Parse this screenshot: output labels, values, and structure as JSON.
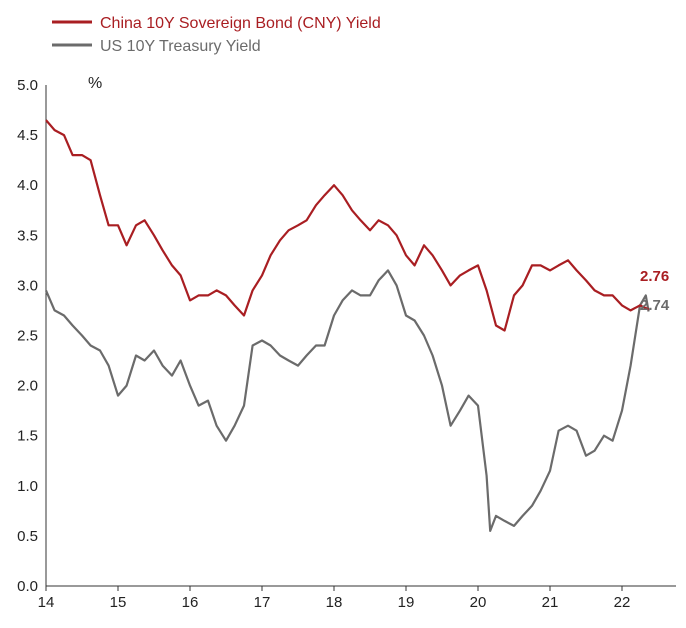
{
  "chart_data": {
    "type": "line",
    "ylabel": "%",
    "ylim": [
      0,
      5
    ],
    "xlim": [
      2014,
      2022.75
    ],
    "x_ticks": [
      "14",
      "15",
      "16",
      "17",
      "18",
      "19",
      "20",
      "21",
      "22"
    ],
    "y_ticks": [
      "0.0",
      "0.5",
      "1.0",
      "1.5",
      "2.0",
      "2.5",
      "3.0",
      "3.5",
      "4.0",
      "4.5",
      "5.0"
    ],
    "grid": false,
    "legend": "top-left",
    "series": [
      {
        "name": "China 10Y Sovereign Bond (CNY) Yield",
        "color": "#a91e22",
        "end_label": "2.76",
        "x": [
          2014.0,
          2014.12,
          2014.25,
          2014.37,
          2014.5,
          2014.62,
          2014.75,
          2014.87,
          2015.0,
          2015.12,
          2015.25,
          2015.37,
          2015.5,
          2015.62,
          2015.75,
          2015.87,
          2016.0,
          2016.12,
          2016.25,
          2016.37,
          2016.5,
          2016.62,
          2016.75,
          2016.87,
          2017.0,
          2017.12,
          2017.25,
          2017.37,
          2017.5,
          2017.62,
          2017.75,
          2017.87,
          2018.0,
          2018.12,
          2018.25,
          2018.37,
          2018.5,
          2018.62,
          2018.75,
          2018.87,
          2019.0,
          2019.12,
          2019.25,
          2019.37,
          2019.5,
          2019.62,
          2019.75,
          2019.87,
          2020.0,
          2020.12,
          2020.25,
          2020.37,
          2020.5,
          2020.62,
          2020.75,
          2020.87,
          2021.0,
          2021.12,
          2021.25,
          2021.37,
          2021.5,
          2021.62,
          2021.75,
          2021.87,
          2022.0,
          2022.12,
          2022.25,
          2022.37
        ],
        "values": [
          4.65,
          4.55,
          4.5,
          4.3,
          4.3,
          4.25,
          3.9,
          3.6,
          3.6,
          3.4,
          3.6,
          3.65,
          3.5,
          3.35,
          3.2,
          3.1,
          2.85,
          2.9,
          2.9,
          2.95,
          2.9,
          2.8,
          2.7,
          2.95,
          3.1,
          3.3,
          3.45,
          3.55,
          3.6,
          3.65,
          3.8,
          3.9,
          4.0,
          3.9,
          3.75,
          3.65,
          3.55,
          3.65,
          3.6,
          3.5,
          3.3,
          3.2,
          3.4,
          3.3,
          3.15,
          3.0,
          3.1,
          3.15,
          3.2,
          2.95,
          2.6,
          2.55,
          2.9,
          3.0,
          3.2,
          3.2,
          3.15,
          3.2,
          3.25,
          3.15,
          3.05,
          2.95,
          2.9,
          2.9,
          2.8,
          2.75,
          2.8,
          2.76
        ]
      },
      {
        "name": "US 10Y Treasury Yield",
        "color": "#6b6b6b",
        "end_label": "2.74",
        "x": [
          2014.0,
          2014.12,
          2014.25,
          2014.37,
          2014.5,
          2014.62,
          2014.75,
          2014.87,
          2015.0,
          2015.12,
          2015.25,
          2015.37,
          2015.5,
          2015.62,
          2015.75,
          2015.87,
          2016.0,
          2016.12,
          2016.25,
          2016.37,
          2016.5,
          2016.62,
          2016.75,
          2016.87,
          2017.0,
          2017.12,
          2017.25,
          2017.37,
          2017.5,
          2017.62,
          2017.75,
          2017.87,
          2018.0,
          2018.12,
          2018.25,
          2018.37,
          2018.5,
          2018.62,
          2018.75,
          2018.87,
          2019.0,
          2019.12,
          2019.25,
          2019.37,
          2019.5,
          2019.62,
          2019.75,
          2019.87,
          2020.0,
          2020.12,
          2020.17,
          2020.25,
          2020.37,
          2020.5,
          2020.62,
          2020.75,
          2020.87,
          2021.0,
          2021.12,
          2021.25,
          2021.37,
          2021.5,
          2021.62,
          2021.75,
          2021.87,
          2022.0,
          2022.12,
          2022.25,
          2022.33,
          2022.37
        ],
        "values": [
          2.95,
          2.75,
          2.7,
          2.6,
          2.5,
          2.4,
          2.35,
          2.2,
          1.9,
          2.0,
          2.3,
          2.25,
          2.35,
          2.2,
          2.1,
          2.25,
          2.0,
          1.8,
          1.85,
          1.6,
          1.45,
          1.6,
          1.8,
          2.4,
          2.45,
          2.4,
          2.3,
          2.25,
          2.2,
          2.3,
          2.4,
          2.4,
          2.7,
          2.85,
          2.95,
          2.9,
          2.9,
          3.05,
          3.15,
          3.0,
          2.7,
          2.65,
          2.5,
          2.3,
          2.0,
          1.6,
          1.75,
          1.9,
          1.8,
          1.1,
          0.55,
          0.7,
          0.65,
          0.6,
          0.7,
          0.8,
          0.95,
          1.15,
          1.55,
          1.6,
          1.55,
          1.3,
          1.35,
          1.5,
          1.45,
          1.75,
          2.2,
          2.8,
          2.9,
          2.74
        ]
      }
    ]
  }
}
